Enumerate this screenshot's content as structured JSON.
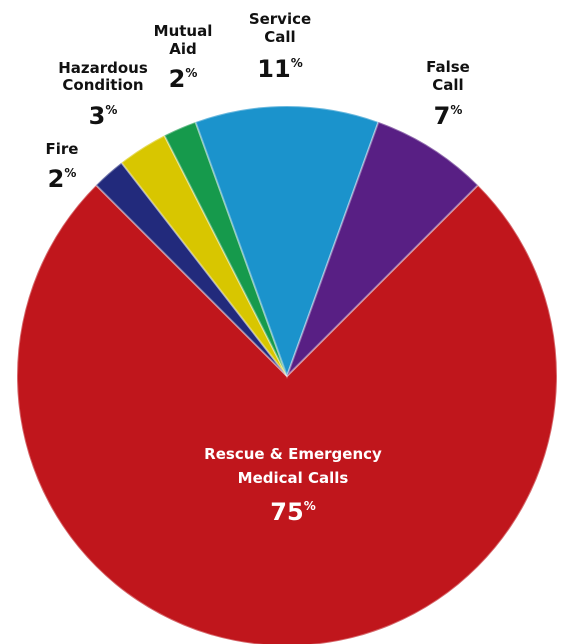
{
  "chart_data": {
    "type": "pie",
    "categories": [
      "Rescue & Emergency\nMedical Calls",
      "Fire",
      "Hazardous\nCondition",
      "Mutual\nAid",
      "Service\nCall",
      "False\nCall"
    ],
    "values": [
      75,
      2,
      3,
      2,
      11,
      7
    ],
    "value_labels": [
      "75%",
      "2%",
      "3%",
      "2%",
      "11%",
      "7%"
    ],
    "colors": [
      "#c0161c",
      "#222a7c",
      "#d8c600",
      "#169a4c",
      "#1b93cc",
      "#581f84"
    ]
  }
}
